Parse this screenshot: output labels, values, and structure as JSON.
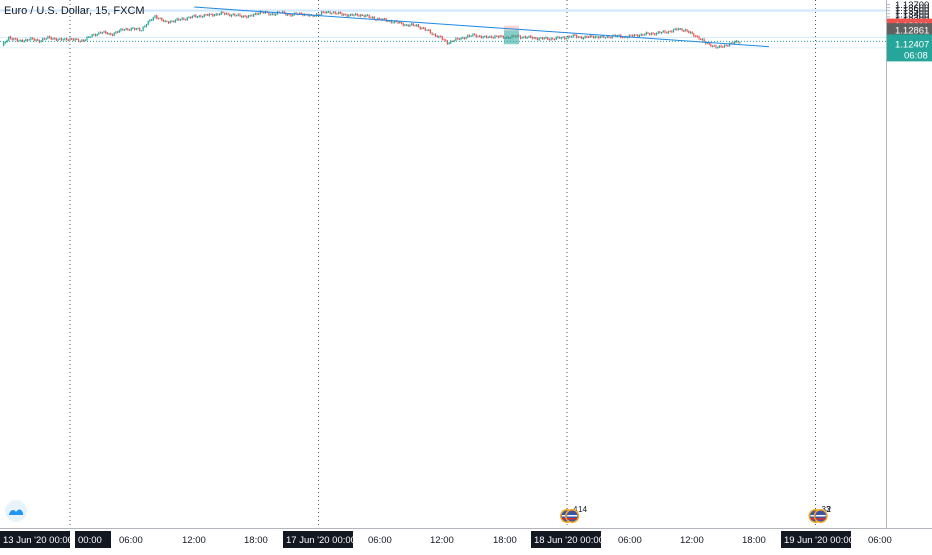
{
  "header": {
    "symbol_title": "Euro / U.S. Dollar, 15, FXCM"
  },
  "colors": {
    "up": "#26a69a",
    "down": "#ef5350",
    "zone": "#bbdefb",
    "trendline": "#1e88e5",
    "price_label": "#26a69a",
    "prev_label": "#ef5350",
    "bid_label": "#616161"
  },
  "chart_data": {
    "type": "candlestick",
    "title": "Euro / U.S. Dollar, 15, FXCM",
    "ylim": [
      1.119,
      1.1372
    ],
    "y_ticks": [
      "1.13700",
      "1.13600",
      "1.13500",
      "1.13400",
      "1.13300",
      "1.13200",
      "1.13100",
      "1.13000",
      "1.12900",
      "1.12800",
      "1.12700",
      "1.12600",
      "1.12500",
      "1.12400",
      "1.12300",
      "1.12200",
      "1.12100",
      "1.12000"
    ],
    "x_ticks": [
      {
        "label": "13 Jun '20  00:00",
        "boxed": true
      },
      {
        "label": "00:00",
        "boxed": true
      },
      {
        "label": "06:00",
        "boxed": false
      },
      {
        "label": "12:00",
        "boxed": false
      },
      {
        "label": "18:00",
        "boxed": false
      },
      {
        "label": "17 Jun '20  00:00",
        "boxed": true
      },
      {
        "label": "06:00",
        "boxed": false
      },
      {
        "label": "12:00",
        "boxed": false
      },
      {
        "label": "18:00",
        "boxed": false
      },
      {
        "label": "18 Jun '20  00:00",
        "boxed": true
      },
      {
        "label": "06:00",
        "boxed": false
      },
      {
        "label": "12:00",
        "boxed": false
      },
      {
        "label": "18:00",
        "boxed": false
      },
      {
        "label": "19 Jun '20  00:00",
        "boxed": true
      },
      {
        "label": "06:00",
        "boxed": false
      }
    ],
    "session_separators": [
      "16 Jun '20 00:00",
      "17 Jun '20 00:00",
      "18 Jun '20 00:00",
      "19 Jun '20 00:00"
    ],
    "price_labels": [
      {
        "value": 1.13011,
        "text": "1.13011",
        "kind": "prev"
      },
      {
        "value": 1.12861,
        "text": "1.12861",
        "kind": "bid"
      },
      {
        "value": 1.12493,
        "text": "1.12493",
        "kind": "last"
      },
      {
        "value": 1.12407,
        "text": "1.12407",
        "kind": "last"
      }
    ],
    "countdown": "06:08",
    "last_price": 1.12493,
    "zones": [
      {
        "from": 1.1347,
        "to": 1.1354
      },
      {
        "from": 1.1261,
        "to": 1.1264
      },
      {
        "from": 1.1227,
        "to": 1.1229
      }
    ],
    "trendline": {
      "from": {
        "time": "16 Jun '20 12:00",
        "price": 1.1362
      },
      "to": {
        "time": "18 Jun '20 19:30",
        "price": 1.1232
      }
    },
    "position": {
      "entry": 1.1286,
      "target": 1.124,
      "stop": 1.1301
    },
    "events": [
      {
        "time": "18 Jun '20 00:00",
        "label": "4"
      },
      {
        "time": "18 Jun '20 00:30",
        "label": "14"
      },
      {
        "time": "19 Jun '20 00:00",
        "label": "33"
      },
      {
        "time": "19 Jun '20 00:30",
        "label": "2"
      }
    ],
    "anchors": [
      {
        "t": 0,
        "p": 1.1233
      },
      {
        "t": 4,
        "p": 1.1263
      },
      {
        "t": 10,
        "p": 1.125
      },
      {
        "t": 16,
        "p": 1.1257
      },
      {
        "t": 22,
        "p": 1.1252
      },
      {
        "t": 28,
        "p": 1.1262
      },
      {
        "t": 34,
        "p": 1.1254
      },
      {
        "t": 40,
        "p": 1.1258
      },
      {
        "t": 46,
        "p": 1.125
      },
      {
        "t": 52,
        "p": 1.1265
      },
      {
        "t": 58,
        "p": 1.128
      },
      {
        "t": 64,
        "p": 1.1272
      },
      {
        "t": 72,
        "p": 1.129
      },
      {
        "t": 82,
        "p": 1.1289
      },
      {
        "t": 90,
        "p": 1.1333
      },
      {
        "t": 96,
        "p": 1.1312
      },
      {
        "t": 104,
        "p": 1.132
      },
      {
        "t": 112,
        "p": 1.133
      },
      {
        "t": 122,
        "p": 1.1336
      },
      {
        "t": 130,
        "p": 1.1341
      },
      {
        "t": 138,
        "p": 1.1334
      },
      {
        "t": 146,
        "p": 1.1331
      },
      {
        "t": 152,
        "p": 1.1347
      },
      {
        "t": 158,
        "p": 1.1338
      },
      {
        "t": 164,
        "p": 1.1344
      },
      {
        "t": 170,
        "p": 1.1336
      },
      {
        "t": 176,
        "p": 1.1341
      },
      {
        "t": 182,
        "p": 1.1332
      },
      {
        "t": 188,
        "p": 1.1343
      },
      {
        "t": 194,
        "p": 1.1345
      },
      {
        "t": 200,
        "p": 1.1338
      },
      {
        "t": 206,
        "p": 1.1335
      },
      {
        "t": 212,
        "p": 1.1336
      },
      {
        "t": 218,
        "p": 1.1326
      },
      {
        "t": 224,
        "p": 1.132
      },
      {
        "t": 232,
        "p": 1.1312
      },
      {
        "t": 238,
        "p": 1.1303
      },
      {
        "t": 244,
        "p": 1.1301
      },
      {
        "t": 250,
        "p": 1.1285
      },
      {
        "t": 254,
        "p": 1.1272
      },
      {
        "t": 258,
        "p": 1.1261
      },
      {
        "t": 262,
        "p": 1.1245
      },
      {
        "t": 266,
        "p": 1.1253
      },
      {
        "t": 272,
        "p": 1.1263
      },
      {
        "t": 278,
        "p": 1.127
      },
      {
        "t": 284,
        "p": 1.1262
      },
      {
        "t": 290,
        "p": 1.1266
      },
      {
        "t": 296,
        "p": 1.1262
      },
      {
        "t": 302,
        "p": 1.1266
      },
      {
        "t": 308,
        "p": 1.1263
      },
      {
        "t": 316,
        "p": 1.1259
      },
      {
        "t": 322,
        "p": 1.1258
      },
      {
        "t": 330,
        "p": 1.1261
      },
      {
        "t": 336,
        "p": 1.1267
      },
      {
        "t": 342,
        "p": 1.1262
      },
      {
        "t": 348,
        "p": 1.1266
      },
      {
        "t": 354,
        "p": 1.1262
      },
      {
        "t": 360,
        "p": 1.1268
      },
      {
        "t": 366,
        "p": 1.1264
      },
      {
        "t": 374,
        "p": 1.127
      },
      {
        "t": 382,
        "p": 1.1275
      },
      {
        "t": 388,
        "p": 1.1278
      },
      {
        "t": 394,
        "p": 1.1284
      },
      {
        "t": 398,
        "p": 1.129
      },
      {
        "t": 402,
        "p": 1.1286
      },
      {
        "t": 406,
        "p": 1.1272
      },
      {
        "t": 410,
        "p": 1.1262
      },
      {
        "t": 414,
        "p": 1.1243
      },
      {
        "t": 418,
        "p": 1.1236
      },
      {
        "t": 421,
        "p": 1.1229
      },
      {
        "t": 424,
        "p": 1.1233
      },
      {
        "t": 428,
        "p": 1.1241
      },
      {
        "t": 432,
        "p": 1.1247
      },
      {
        "t": 434,
        "p": 1.1249
      }
    ]
  }
}
